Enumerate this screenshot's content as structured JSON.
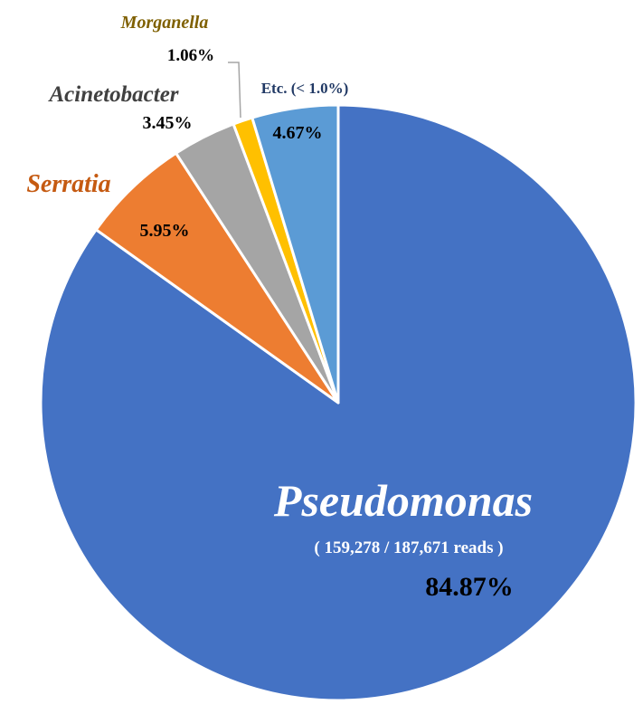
{
  "chart_data": {
    "type": "pie",
    "slices": [
      {
        "name": "Pseudomonas",
        "value": 84.87,
        "value_label": "84.87%",
        "detail": "( 159,278 / 187,671 reads )",
        "color": "#4472C4"
      },
      {
        "name": "Serratia",
        "value": 5.95,
        "value_label": "5.95%",
        "color": "#ED7D31"
      },
      {
        "name": "Acinetobacter",
        "value": 3.45,
        "value_label": "3.45%",
        "color": "#A5A5A5"
      },
      {
        "name": "Morganella",
        "value": 1.06,
        "value_label": "1.06%",
        "color": "#FFC000"
      },
      {
        "name": "Etc. (< 1.0%)",
        "value": 4.67,
        "value_label": "4.67%",
        "color": "#5B9BD5"
      }
    ],
    "start": "top, clockwise from 12 o'clock; last slice ends at 12 o'clock",
    "legend": "none",
    "label_colors": {
      "Pseudomonas": "#ffffff",
      "Serratia": "#C55A11",
      "Acinetobacter": "#404040",
      "Morganella": "#7F6000",
      "Etc. (< 1.0%)": "#203864",
      "values": "#000000"
    }
  }
}
